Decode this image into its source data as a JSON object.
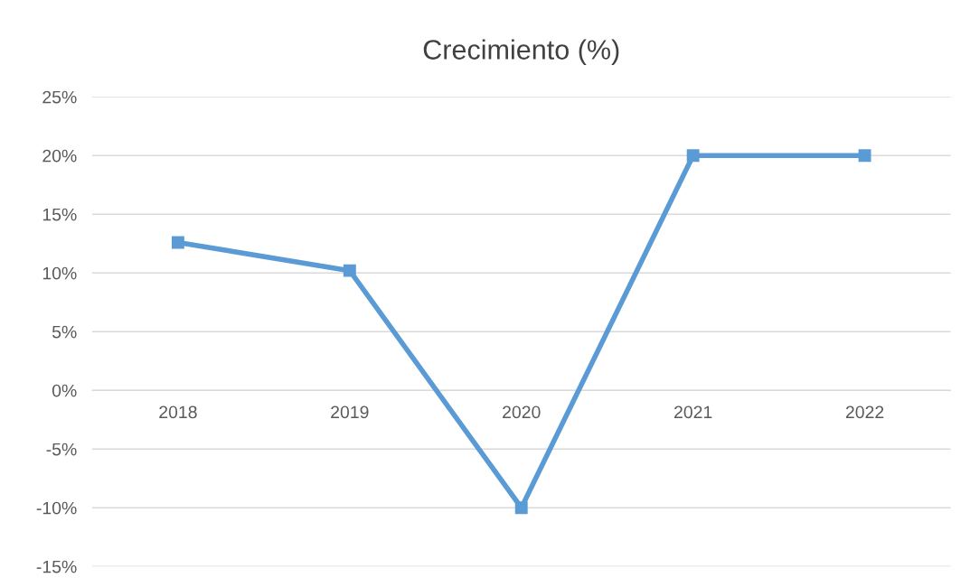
{
  "chart_data": {
    "type": "line",
    "title": "Crecimiento (%)",
    "categories": [
      "2018",
      "2019",
      "2020",
      "2021",
      "2022"
    ],
    "series": [
      {
        "color": "#5b9bd5",
        "values": [
          12.6,
          10.2,
          -10,
          20,
          20
        ]
      }
    ],
    "ylim": [
      -15,
      25
    ],
    "yticks": [
      {
        "value": -15,
        "label": "-15%"
      },
      {
        "value": -10,
        "label": "-10%"
      },
      {
        "value": -5,
        "label": "-5%"
      },
      {
        "value": 0,
        "label": "0%"
      },
      {
        "value": 5,
        "label": "5%"
      },
      {
        "value": 10,
        "label": "10%"
      },
      {
        "value": 15,
        "label": "15%"
      },
      {
        "value": 20,
        "label": "20%"
      },
      {
        "value": 25,
        "label": "25%"
      }
    ],
    "grid": "y",
    "marker": "square",
    "line_style": "solid"
  }
}
